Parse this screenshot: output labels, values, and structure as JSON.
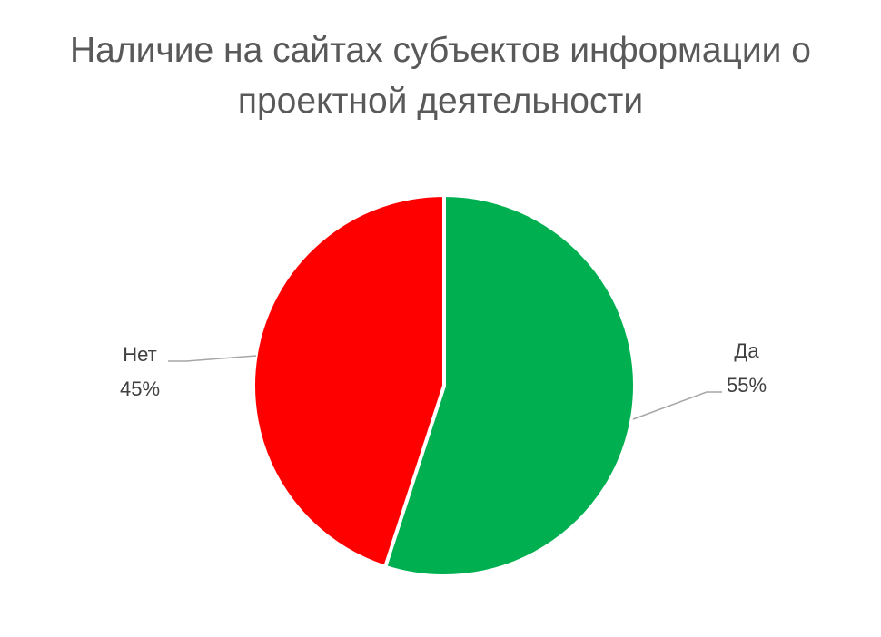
{
  "chart_data": {
    "type": "pie",
    "title": "Наличие на сайтах субъектов информации о проектной деятельности",
    "categories": [
      "Да",
      "Нет"
    ],
    "values": [
      55,
      45
    ],
    "value_labels": [
      "55%",
      "45%"
    ],
    "colors": [
      "#00B050",
      "#FF0000"
    ],
    "start_angle_deg": 0,
    "direction": "clockwise",
    "legend": "none",
    "data_labels": "outside-with-leader-lines"
  }
}
